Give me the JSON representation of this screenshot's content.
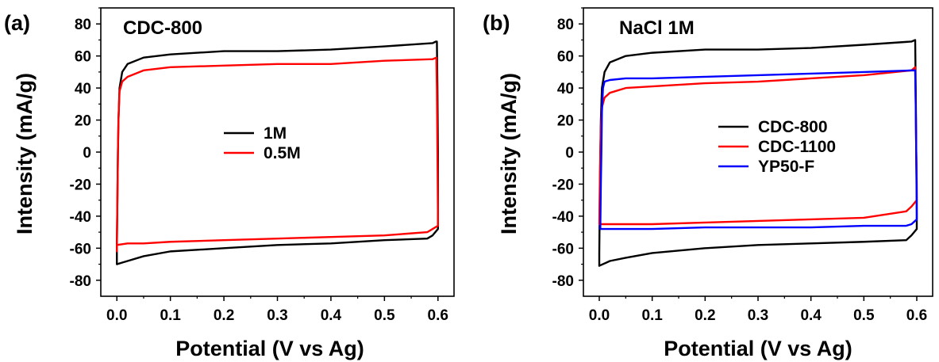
{
  "chart_data": [
    {
      "type": "line",
      "panel_label": "(a)",
      "title": "CDC-800",
      "xlabel": "Potential (V vs Ag)",
      "ylabel": "Intensity (mA/g)",
      "xlim": [
        -0.03,
        0.63
      ],
      "ylim": [
        -90,
        90
      ],
      "xticks": [
        "0.0",
        "0.1",
        "0.2",
        "0.3",
        "0.4",
        "0.5",
        "0.6"
      ],
      "yticks": [
        "-80",
        "-60",
        "-40",
        "-20",
        "0",
        "20",
        "40",
        "60",
        "80"
      ],
      "legend_position": "center",
      "series": [
        {
          "name": "1M",
          "color": "#000000",
          "points": [
            [
              0.0,
              -57
            ],
            [
              0.001,
              -30
            ],
            [
              0.002,
              0
            ],
            [
              0.003,
              20
            ],
            [
              0.005,
              40
            ],
            [
              0.01,
              50
            ],
            [
              0.02,
              55
            ],
            [
              0.05,
              59
            ],
            [
              0.1,
              61
            ],
            [
              0.2,
              63
            ],
            [
              0.3,
              63
            ],
            [
              0.4,
              64
            ],
            [
              0.5,
              66
            ],
            [
              0.59,
              68
            ],
            [
              0.596,
              69
            ],
            [
              0.598,
              69
            ],
            [
              0.599,
              40
            ],
            [
              0.6,
              0
            ],
            [
              0.6,
              -48
            ],
            [
              0.59,
              -52
            ],
            [
              0.58,
              -54
            ],
            [
              0.5,
              -55
            ],
            [
              0.4,
              -57
            ],
            [
              0.3,
              -58
            ],
            [
              0.2,
              -60
            ],
            [
              0.1,
              -62
            ],
            [
              0.05,
              -65
            ],
            [
              0.02,
              -68
            ],
            [
              0.01,
              -69
            ],
            [
              0.0,
              -70
            ]
          ]
        },
        {
          "name": "0.5M",
          "color": "#ff0000",
          "points": [
            [
              0.0,
              -62
            ],
            [
              0.001,
              -30
            ],
            [
              0.002,
              0
            ],
            [
              0.003,
              20
            ],
            [
              0.005,
              38
            ],
            [
              0.01,
              44
            ],
            [
              0.02,
              47
            ],
            [
              0.05,
              51
            ],
            [
              0.1,
              53
            ],
            [
              0.2,
              54
            ],
            [
              0.3,
              55
            ],
            [
              0.4,
              55
            ],
            [
              0.5,
              57
            ],
            [
              0.59,
              58
            ],
            [
              0.597,
              59
            ],
            [
              0.598,
              40
            ],
            [
              0.599,
              0
            ],
            [
              0.6,
              -40
            ],
            [
              0.6,
              -46
            ],
            [
              0.59,
              -48
            ],
            [
              0.58,
              -50
            ],
            [
              0.5,
              -52
            ],
            [
              0.4,
              -53
            ],
            [
              0.3,
              -54
            ],
            [
              0.2,
              -55
            ],
            [
              0.1,
              -56
            ],
            [
              0.05,
              -57
            ],
            [
              0.02,
              -57
            ],
            [
              0.0,
              -58
            ]
          ]
        }
      ]
    },
    {
      "type": "line",
      "panel_label": "(b)",
      "title": "NaCl 1M",
      "xlabel": "Potential (V vs Ag)",
      "ylabel": "Intensity (mA/g)",
      "xlim": [
        -0.03,
        0.63
      ],
      "ylim": [
        -90,
        90
      ],
      "xticks": [
        "0.0",
        "0.1",
        "0.2",
        "0.3",
        "0.4",
        "0.5",
        "0.6"
      ],
      "yticks": [
        "-80",
        "-60",
        "-40",
        "-20",
        "0",
        "20",
        "40",
        "60",
        "80"
      ],
      "legend_position": "center-right",
      "series": [
        {
          "name": "CDC-800",
          "color": "#000000",
          "points": [
            [
              0.0,
              -63
            ],
            [
              0.001,
              -30
            ],
            [
              0.002,
              0
            ],
            [
              0.003,
              20
            ],
            [
              0.005,
              40
            ],
            [
              0.01,
              50
            ],
            [
              0.02,
              56
            ],
            [
              0.05,
              60
            ],
            [
              0.1,
              62
            ],
            [
              0.2,
              64
            ],
            [
              0.3,
              64
            ],
            [
              0.4,
              65
            ],
            [
              0.5,
              67
            ],
            [
              0.59,
              69
            ],
            [
              0.597,
              70
            ],
            [
              0.598,
              40
            ],
            [
              0.599,
              0
            ],
            [
              0.6,
              -40
            ],
            [
              0.6,
              -48
            ],
            [
              0.59,
              -52
            ],
            [
              0.58,
              -55
            ],
            [
              0.5,
              -56
            ],
            [
              0.4,
              -57
            ],
            [
              0.3,
              -58
            ],
            [
              0.2,
              -60
            ],
            [
              0.1,
              -63
            ],
            [
              0.05,
              -66
            ],
            [
              0.02,
              -68
            ],
            [
              0.0,
              -71
            ]
          ]
        },
        {
          "name": "CDC-1100",
          "color": "#ff0000",
          "points": [
            [
              0.0,
              -45
            ],
            [
              0.001,
              -20
            ],
            [
              0.002,
              0
            ],
            [
              0.003,
              15
            ],
            [
              0.005,
              28
            ],
            [
              0.01,
              34
            ],
            [
              0.02,
              37
            ],
            [
              0.05,
              40
            ],
            [
              0.1,
              41
            ],
            [
              0.2,
              43
            ],
            [
              0.3,
              44
            ],
            [
              0.4,
              46
            ],
            [
              0.5,
              48
            ],
            [
              0.59,
              51
            ],
            [
              0.597,
              53
            ],
            [
              0.598,
              30
            ],
            [
              0.599,
              0
            ],
            [
              0.6,
              -20
            ],
            [
              0.6,
              -30
            ],
            [
              0.59,
              -34
            ],
            [
              0.58,
              -37
            ],
            [
              0.5,
              -41
            ],
            [
              0.4,
              -42
            ],
            [
              0.3,
              -43
            ],
            [
              0.2,
              -44
            ],
            [
              0.1,
              -45
            ],
            [
              0.05,
              -45
            ],
            [
              0.02,
              -45
            ],
            [
              0.0,
              -45
            ]
          ]
        },
        {
          "name": "YP50-F",
          "color": "#0000ff",
          "points": [
            [
              0.002,
              -48
            ],
            [
              0.003,
              -20
            ],
            [
              0.004,
              0
            ],
            [
              0.005,
              25
            ],
            [
              0.007,
              40
            ],
            [
              0.01,
              44
            ],
            [
              0.02,
              45
            ],
            [
              0.05,
              46
            ],
            [
              0.1,
              46
            ],
            [
              0.2,
              47
            ],
            [
              0.3,
              48
            ],
            [
              0.4,
              49
            ],
            [
              0.5,
              50
            ],
            [
              0.59,
              51
            ],
            [
              0.597,
              51
            ],
            [
              0.598,
              30
            ],
            [
              0.599,
              0
            ],
            [
              0.6,
              -30
            ],
            [
              0.6,
              -42
            ],
            [
              0.59,
              -45
            ],
            [
              0.58,
              -46
            ],
            [
              0.5,
              -46
            ],
            [
              0.4,
              -47
            ],
            [
              0.3,
              -47
            ],
            [
              0.2,
              -47
            ],
            [
              0.1,
              -48
            ],
            [
              0.05,
              -48
            ],
            [
              0.02,
              -48
            ],
            [
              0.002,
              -48
            ]
          ]
        }
      ]
    }
  ]
}
